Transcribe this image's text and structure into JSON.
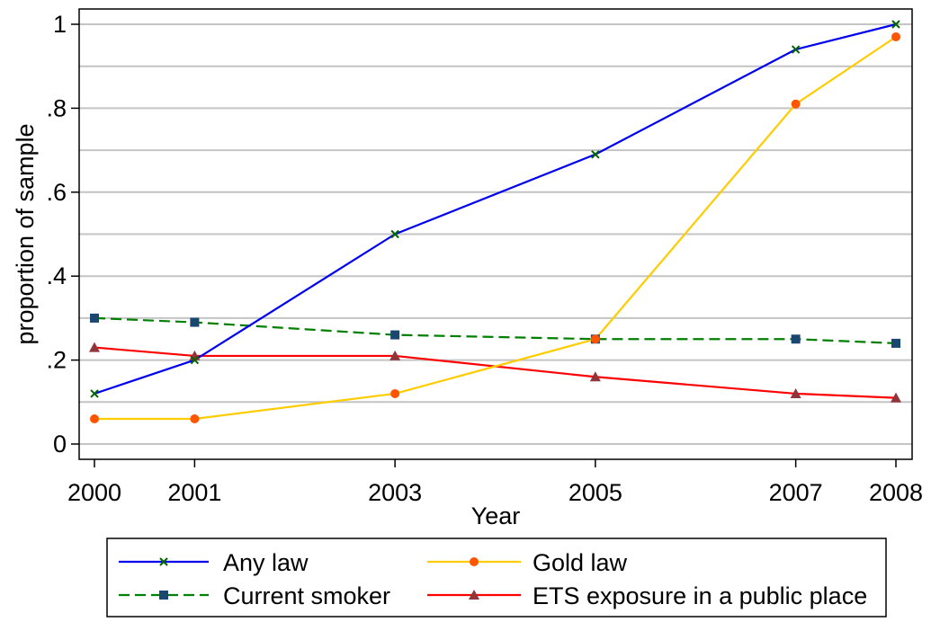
{
  "chart_data": {
    "type": "line",
    "title": "",
    "xlabel": "Year",
    "ylabel": "proportion of sample",
    "x": [
      2000,
      2001,
      2003,
      2005,
      2007,
      2008
    ],
    "x_tick_labels": [
      "2000",
      "2001",
      "2003",
      "2005",
      "2007",
      "2008"
    ],
    "xlim": [
      2000,
      2008
    ],
    "ylim": [
      0,
      1
    ],
    "y_ticks": [
      0,
      0.2,
      0.4,
      0.6,
      0.8,
      1
    ],
    "y_tick_labels": [
      "0",
      ".2",
      ".4",
      ".6",
      ".8",
      "1"
    ],
    "grid": true,
    "legend_position": "bottom",
    "series": [
      {
        "name": "Any law",
        "values": [
          0.12,
          0.2,
          0.5,
          0.69,
          0.94,
          1.0
        ],
        "color": "#0000ee",
        "marker": "x",
        "marker_color": "#006400",
        "dash": "solid"
      },
      {
        "name": "Gold law",
        "values": [
          0.06,
          0.06,
          0.12,
          0.25,
          0.81,
          0.97
        ],
        "color": "#ffcc00",
        "marker": "circle",
        "marker_color": "#ff5500",
        "dash": "solid"
      },
      {
        "name": "Current smoker",
        "values": [
          0.3,
          0.29,
          0.26,
          0.25,
          0.25,
          0.24
        ],
        "color": "#008000",
        "marker": "square",
        "marker_color": "#1a476f",
        "dash": "dashed"
      },
      {
        "name": "ETS exposure in a public place",
        "values": [
          0.23,
          0.21,
          0.21,
          0.16,
          0.12,
          0.11
        ],
        "color": "#ff0000",
        "marker": "triangle",
        "marker_color": "#90353b",
        "dash": "solid"
      }
    ]
  }
}
